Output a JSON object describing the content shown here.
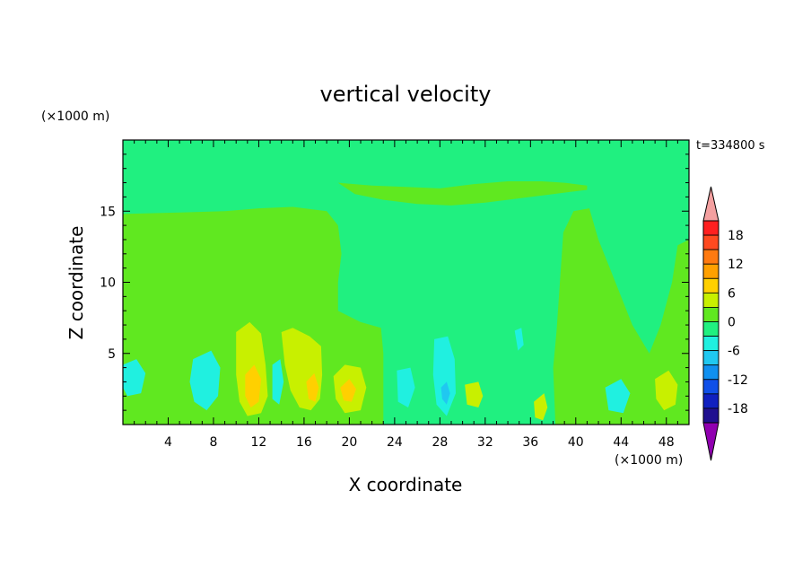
{
  "chart_data": {
    "type": "heatmap",
    "title": "vertical velocity",
    "xlabel": "X coordinate",
    "ylabel": "Z coordinate",
    "x_unit": "(×1000 m)",
    "y_unit": "(×1000 m)",
    "time_label": "t=334800 s",
    "xlim": [
      0,
      50
    ],
    "ylim": [
      0,
      20
    ],
    "x_ticks": [
      4,
      8,
      12,
      16,
      20,
      24,
      28,
      32,
      36,
      40,
      44,
      48
    ],
    "y_ticks": [
      5,
      10,
      15
    ],
    "colorbar": {
      "ticks": [
        18,
        12,
        6,
        0,
        -6,
        -12,
        -18
      ],
      "range": [
        -21,
        21
      ],
      "step": 3,
      "levels": [
        {
          "from": 18,
          "to": 21,
          "color": "#ff2020"
        },
        {
          "from": 15,
          "to": 18,
          "color": "#ff4a20"
        },
        {
          "from": 12,
          "to": 15,
          "color": "#ff7a10"
        },
        {
          "from": 9,
          "to": 12,
          "color": "#ffa000"
        },
        {
          "from": 6,
          "to": 9,
          "color": "#ffd000"
        },
        {
          "from": 3,
          "to": 6,
          "color": "#c8f000"
        },
        {
          "from": 0,
          "to": 3,
          "color": "#60e820"
        },
        {
          "from": -3,
          "to": 0,
          "color": "#20f080"
        },
        {
          "from": -6,
          "to": -3,
          "color": "#20f0e0"
        },
        {
          "from": -9,
          "to": -6,
          "color": "#20c8f0"
        },
        {
          "from": -12,
          "to": -9,
          "color": "#1090f0"
        },
        {
          "from": -15,
          "to": -12,
          "color": "#1050e8"
        },
        {
          "from": -18,
          "to": -15,
          "color": "#1020c0"
        },
        {
          "from": -21,
          "to": -18,
          "color": "#201090"
        }
      ],
      "over_color": "#f4a0a0",
      "under_color": "#9000b0"
    },
    "background_level_color": "#20f080",
    "regions": [
      {
        "name": "upper-positive-band-left",
        "level": "0to3",
        "color": "#60e820",
        "points": [
          [
            0,
            14.8
          ],
          [
            5,
            14.9
          ],
          [
            9,
            15.0
          ],
          [
            12,
            15.2
          ],
          [
            15,
            15.3
          ],
          [
            18,
            15.0
          ],
          [
            19,
            14.0
          ],
          [
            19.3,
            12.0
          ],
          [
            19,
            10.0
          ],
          [
            19,
            8.0
          ],
          [
            21,
            7.2
          ],
          [
            22.8,
            6.8
          ],
          [
            23,
            5
          ],
          [
            23,
            0
          ],
          [
            0,
            0
          ]
        ]
      },
      {
        "name": "upper-positive-band-right",
        "level": "0to3",
        "color": "#60e820",
        "points": [
          [
            38.2,
            0
          ],
          [
            38,
            4
          ],
          [
            38.3,
            6.5
          ],
          [
            38.6,
            10
          ],
          [
            38.9,
            13.5
          ],
          [
            39.8,
            15
          ],
          [
            41.2,
            15.2
          ],
          [
            42,
            13
          ],
          [
            43,
            11
          ],
          [
            44,
            9
          ],
          [
            45,
            7
          ],
          [
            46.5,
            5
          ],
          [
            47.5,
            7
          ],
          [
            48.5,
            10
          ],
          [
            49,
            12.6
          ],
          [
            50,
            13
          ],
          [
            50,
            0
          ]
        ]
      },
      {
        "name": "upper-streaks",
        "level": "0to3",
        "color": "#60e820",
        "points": [
          [
            19,
            17.0
          ],
          [
            22,
            16.8
          ],
          [
            25,
            16.7
          ],
          [
            28,
            16.6
          ],
          [
            31,
            16.9
          ],
          [
            34,
            17.1
          ],
          [
            37,
            17.1
          ],
          [
            39,
            17.0
          ],
          [
            41,
            16.8
          ],
          [
            41,
            16.5
          ],
          [
            38,
            16.2
          ],
          [
            35,
            15.9
          ],
          [
            32,
            15.6
          ],
          [
            29,
            15.4
          ],
          [
            26,
            15.5
          ],
          [
            23,
            15.8
          ],
          [
            20.5,
            16.2
          ]
        ]
      },
      {
        "name": "updraft-core-12",
        "level": "3to6",
        "color": "#c8f000",
        "points": [
          [
            10,
            6.5
          ],
          [
            11.2,
            7.2
          ],
          [
            12.2,
            6.4
          ],
          [
            12.6,
            4.2
          ],
          [
            12.8,
            2.0
          ],
          [
            12.2,
            0.8
          ],
          [
            11,
            0.6
          ],
          [
            10.3,
            1.6
          ],
          [
            10,
            3.5
          ]
        ]
      },
      {
        "name": "updraft-core-12-inner",
        "level": "6to9",
        "color": "#ffd000",
        "points": [
          [
            10.8,
            3.5
          ],
          [
            11.6,
            4.2
          ],
          [
            12.2,
            3.2
          ],
          [
            12.0,
            1.6
          ],
          [
            11.3,
            1.2
          ],
          [
            10.8,
            2.0
          ]
        ]
      },
      {
        "name": "updraft-core-16",
        "level": "3to6",
        "color": "#c8f000",
        "points": [
          [
            14.0,
            6.5
          ],
          [
            15.0,
            6.8
          ],
          [
            16.5,
            6.2
          ],
          [
            17.5,
            5.5
          ],
          [
            17.6,
            3.5
          ],
          [
            17.4,
            1.8
          ],
          [
            16.6,
            1.0
          ],
          [
            15.6,
            1.2
          ],
          [
            14.8,
            2.4
          ],
          [
            14.3,
            4.2
          ]
        ]
      },
      {
        "name": "updraft-core-16-inner",
        "level": "6to9",
        "color": "#ffd000",
        "points": [
          [
            16.2,
            3.0
          ],
          [
            16.9,
            3.6
          ],
          [
            17.3,
            2.6
          ],
          [
            17.0,
            1.6
          ],
          [
            16.4,
            1.8
          ]
        ]
      },
      {
        "name": "updraft-core-20",
        "level": "3to6",
        "color": "#c8f000",
        "points": [
          [
            18.6,
            3.4
          ],
          [
            19.6,
            4.2
          ],
          [
            21.0,
            4.0
          ],
          [
            21.5,
            2.6
          ],
          [
            21.0,
            1.0
          ],
          [
            19.6,
            0.8
          ],
          [
            18.8,
            1.8
          ]
        ]
      },
      {
        "name": "updraft-core-20-inner",
        "level": "6to9",
        "color": "#ffd000",
        "points": [
          [
            19.2,
            2.6
          ],
          [
            20.0,
            3.2
          ],
          [
            20.6,
            2.5
          ],
          [
            20.2,
            1.6
          ],
          [
            19.5,
            1.7
          ]
        ]
      },
      {
        "name": "updraft-core-31",
        "level": "3to6",
        "color": "#c8f000",
        "points": [
          [
            30.2,
            2.8
          ],
          [
            31.4,
            3.0
          ],
          [
            31.8,
            2.0
          ],
          [
            31.4,
            1.2
          ],
          [
            30.4,
            1.4
          ]
        ]
      },
      {
        "name": "updraft-core-37",
        "level": "3to6",
        "color": "#c8f000",
        "points": [
          [
            36.3,
            1.6
          ],
          [
            37.2,
            2.2
          ],
          [
            37.5,
            1.2
          ],
          [
            37.1,
            0.3
          ],
          [
            36.4,
            0.5
          ]
        ]
      },
      {
        "name": "updraft-core-48",
        "level": "3to6",
        "color": "#c8f000",
        "points": [
          [
            47.0,
            3.2
          ],
          [
            48.2,
            3.8
          ],
          [
            49.0,
            2.8
          ],
          [
            48.8,
            1.4
          ],
          [
            47.8,
            1.0
          ],
          [
            47.1,
            1.8
          ]
        ]
      },
      {
        "name": "downdraft-8",
        "level": "-6to-3",
        "color": "#20f0e0",
        "points": [
          [
            6.2,
            4.6
          ],
          [
            7.8,
            5.2
          ],
          [
            8.6,
            4.0
          ],
          [
            8.4,
            2.0
          ],
          [
            7.4,
            1.0
          ],
          [
            6.3,
            1.6
          ],
          [
            5.9,
            3.0
          ]
        ]
      },
      {
        "name": "downdraft-14",
        "level": "-6to-3",
        "color": "#20f0e0",
        "points": [
          [
            13.2,
            4.2
          ],
          [
            13.9,
            4.6
          ],
          [
            14.2,
            3.0
          ],
          [
            13.8,
            1.4
          ],
          [
            13.2,
            1.8
          ]
        ]
      },
      {
        "name": "downdraft-29",
        "level": "-6to-3",
        "color": "#20f0e0",
        "points": [
          [
            27.5,
            6.0
          ],
          [
            28.7,
            6.2
          ],
          [
            29.3,
            4.6
          ],
          [
            29.4,
            2.2
          ],
          [
            28.6,
            0.6
          ],
          [
            27.7,
            1.4
          ],
          [
            27.4,
            3.5
          ]
        ]
      },
      {
        "name": "downdraft-29-inner",
        "level": "-9to-6",
        "color": "#20c8f0",
        "points": [
          [
            28.1,
            2.6
          ],
          [
            28.6,
            3.0
          ],
          [
            28.9,
            2.2
          ],
          [
            28.6,
            1.4
          ],
          [
            28.2,
            1.8
          ]
        ]
      },
      {
        "name": "downdraft-25",
        "level": "-6to-3",
        "color": "#20f0e0",
        "points": [
          [
            24.2,
            3.8
          ],
          [
            25.4,
            4.0
          ],
          [
            25.8,
            2.6
          ],
          [
            25.2,
            1.2
          ],
          [
            24.3,
            1.6
          ]
        ]
      },
      {
        "name": "downdraft-43",
        "level": "-6to-3",
        "color": "#20f0e0",
        "points": [
          [
            42.6,
            2.6
          ],
          [
            44.0,
            3.2
          ],
          [
            44.8,
            2.2
          ],
          [
            44.2,
            0.8
          ],
          [
            42.9,
            1.0
          ]
        ]
      },
      {
        "name": "downdraft-35",
        "level": "-6to-3",
        "color": "#20f0e0",
        "points": [
          [
            34.6,
            6.6
          ],
          [
            35.2,
            6.8
          ],
          [
            35.4,
            5.6
          ],
          [
            34.9,
            5.2
          ]
        ]
      },
      {
        "name": "downdraft-2",
        "level": "-6to-3",
        "color": "#20f0e0",
        "points": [
          [
            0,
            4.2
          ],
          [
            1.2,
            4.6
          ],
          [
            2.0,
            3.6
          ],
          [
            1.6,
            2.2
          ],
          [
            0.4,
            2.0
          ],
          [
            0,
            2.6
          ]
        ]
      }
    ]
  }
}
